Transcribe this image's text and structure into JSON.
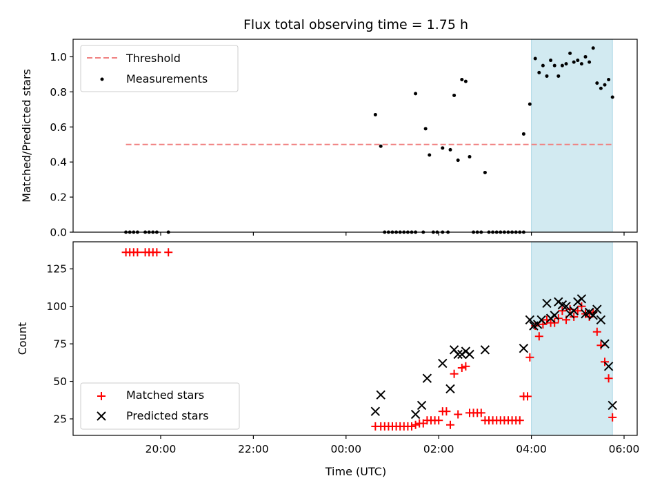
{
  "chart_data": [
    {
      "type": "scatter",
      "title": "Flux total observing time = 1.75 h",
      "ylabel": "Matched/Predicted stars",
      "ylim": [
        0,
        1.1
      ],
      "yticks": [
        "0.0",
        "0.2",
        "0.4",
        "0.6",
        "0.8",
        "1.0"
      ],
      "highlight_span": {
        "x": [
          "04:00",
          "05:45"
        ],
        "color": "#add8e6"
      },
      "legend": {
        "position": "top-left",
        "threshold_label": "Threshold",
        "measurements_label": "Measurements"
      },
      "threshold": {
        "value": 0.5,
        "x": [
          "19:15",
          "05:45"
        ],
        "color": "#f08080"
      },
      "measurements": [
        {
          "x": "19:15",
          "y": 0.0
        },
        {
          "x": "19:20",
          "y": 0.0
        },
        {
          "x": "19:25",
          "y": 0.0
        },
        {
          "x": "19:30",
          "y": 0.0
        },
        {
          "x": "19:40",
          "y": 0.0
        },
        {
          "x": "19:45",
          "y": 0.0
        },
        {
          "x": "19:50",
          "y": 0.0
        },
        {
          "x": "19:55",
          "y": 0.0
        },
        {
          "x": "20:10",
          "y": 0.0
        },
        {
          "x": "00:38",
          "y": 0.67
        },
        {
          "x": "00:45",
          "y": 0.49
        },
        {
          "x": "00:50",
          "y": 0.0
        },
        {
          "x": "00:55",
          "y": 0.0
        },
        {
          "x": "01:00",
          "y": 0.0
        },
        {
          "x": "01:05",
          "y": 0.0
        },
        {
          "x": "01:10",
          "y": 0.0
        },
        {
          "x": "01:15",
          "y": 0.0
        },
        {
          "x": "01:20",
          "y": 0.0
        },
        {
          "x": "01:25",
          "y": 0.0
        },
        {
          "x": "01:30",
          "y": 0.0
        },
        {
          "x": "01:30",
          "y": 0.79
        },
        {
          "x": "01:40",
          "y": 0.0
        },
        {
          "x": "01:43",
          "y": 0.59
        },
        {
          "x": "01:48",
          "y": 0.44
        },
        {
          "x": "01:53",
          "y": 0.0
        },
        {
          "x": "01:58",
          "y": 0.0
        },
        {
          "x": "02:05",
          "y": 0.0
        },
        {
          "x": "02:05",
          "y": 0.48
        },
        {
          "x": "02:12",
          "y": 0.0
        },
        {
          "x": "02:15",
          "y": 0.47
        },
        {
          "x": "02:20",
          "y": 0.78
        },
        {
          "x": "02:25",
          "y": 0.41
        },
        {
          "x": "02:30",
          "y": 0.87
        },
        {
          "x": "02:35",
          "y": 0.86
        },
        {
          "x": "02:40",
          "y": 0.43
        },
        {
          "x": "02:45",
          "y": 0.0
        },
        {
          "x": "02:50",
          "y": 0.0
        },
        {
          "x": "02:55",
          "y": 0.0
        },
        {
          "x": "03:00",
          "y": 0.34
        },
        {
          "x": "03:05",
          "y": 0.0
        },
        {
          "x": "03:10",
          "y": 0.0
        },
        {
          "x": "03:15",
          "y": 0.0
        },
        {
          "x": "03:20",
          "y": 0.0
        },
        {
          "x": "03:25",
          "y": 0.0
        },
        {
          "x": "03:30",
          "y": 0.0
        },
        {
          "x": "03:35",
          "y": 0.0
        },
        {
          "x": "03:40",
          "y": 0.0
        },
        {
          "x": "03:45",
          "y": 0.0
        },
        {
          "x": "03:50",
          "y": 0.0
        },
        {
          "x": "03:50",
          "y": 0.56
        },
        {
          "x": "03:58",
          "y": 0.73
        },
        {
          "x": "04:05",
          "y": 0.99
        },
        {
          "x": "04:10",
          "y": 0.91
        },
        {
          "x": "04:15",
          "y": 0.95
        },
        {
          "x": "04:20",
          "y": 0.89
        },
        {
          "x": "04:25",
          "y": 0.98
        },
        {
          "x": "04:30",
          "y": 0.95
        },
        {
          "x": "04:35",
          "y": 0.89
        },
        {
          "x": "04:40",
          "y": 0.95
        },
        {
          "x": "04:45",
          "y": 0.96
        },
        {
          "x": "04:50",
          "y": 1.02
        },
        {
          "x": "04:55",
          "y": 0.97
        },
        {
          "x": "05:00",
          "y": 0.98
        },
        {
          "x": "05:05",
          "y": 0.96
        },
        {
          "x": "05:10",
          "y": 1.0
        },
        {
          "x": "05:15",
          "y": 0.97
        },
        {
          "x": "05:20",
          "y": 1.05
        },
        {
          "x": "05:25",
          "y": 0.85
        },
        {
          "x": "05:30",
          "y": 0.82
        },
        {
          "x": "05:35",
          "y": 0.84
        },
        {
          "x": "05:40",
          "y": 0.87
        },
        {
          "x": "05:45",
          "y": 0.77
        }
      ]
    },
    {
      "type": "scatter",
      "xlabel": "Time (UTC)",
      "ylabel": "Count",
      "xticks": [
        "20:00",
        "22:00",
        "00:00",
        "02:00",
        "04:00",
        "06:00"
      ],
      "ylim": [
        14,
        143
      ],
      "yticks": [
        "25",
        "50",
        "75",
        "100",
        "125"
      ],
      "highlight_span": {
        "x": [
          "04:00",
          "05:45"
        ],
        "color": "#add8e6"
      },
      "legend": {
        "position": "bottom-left"
      },
      "series": [
        {
          "name": "Matched stars",
          "marker": "plus",
          "color": "#ff0000",
          "points": [
            {
              "x": "19:15",
              "y": 136
            },
            {
              "x": "19:20",
              "y": 136
            },
            {
              "x": "19:25",
              "y": 136
            },
            {
              "x": "19:30",
              "y": 136
            },
            {
              "x": "19:40",
              "y": 136
            },
            {
              "x": "19:45",
              "y": 136
            },
            {
              "x": "19:50",
              "y": 136
            },
            {
              "x": "19:55",
              "y": 136
            },
            {
              "x": "20:10",
              "y": 136
            },
            {
              "x": "00:38",
              "y": 20
            },
            {
              "x": "00:45",
              "y": 20
            },
            {
              "x": "00:50",
              "y": 20
            },
            {
              "x": "00:55",
              "y": 20
            },
            {
              "x": "01:00",
              "y": 20
            },
            {
              "x": "01:05",
              "y": 20
            },
            {
              "x": "01:10",
              "y": 20
            },
            {
              "x": "01:15",
              "y": 20
            },
            {
              "x": "01:20",
              "y": 20
            },
            {
              "x": "01:25",
              "y": 20
            },
            {
              "x": "01:30",
              "y": 21
            },
            {
              "x": "01:35",
              "y": 22
            },
            {
              "x": "01:40",
              "y": 22
            },
            {
              "x": "01:45",
              "y": 24
            },
            {
              "x": "01:50",
              "y": 24
            },
            {
              "x": "01:55",
              "y": 24
            },
            {
              "x": "02:00",
              "y": 24
            },
            {
              "x": "02:05",
              "y": 30
            },
            {
              "x": "02:10",
              "y": 30
            },
            {
              "x": "02:15",
              "y": 21
            },
            {
              "x": "02:20",
              "y": 55
            },
            {
              "x": "02:25",
              "y": 28
            },
            {
              "x": "02:30",
              "y": 59
            },
            {
              "x": "02:35",
              "y": 60
            },
            {
              "x": "02:40",
              "y": 29
            },
            {
              "x": "02:45",
              "y": 29
            },
            {
              "x": "02:50",
              "y": 29
            },
            {
              "x": "02:55",
              "y": 29
            },
            {
              "x": "03:00",
              "y": 24
            },
            {
              "x": "03:05",
              "y": 24
            },
            {
              "x": "03:10",
              "y": 24
            },
            {
              "x": "03:15",
              "y": 24
            },
            {
              "x": "03:20",
              "y": 24
            },
            {
              "x": "03:25",
              "y": 24
            },
            {
              "x": "03:30",
              "y": 24
            },
            {
              "x": "03:35",
              "y": 24
            },
            {
              "x": "03:40",
              "y": 24
            },
            {
              "x": "03:45",
              "y": 24
            },
            {
              "x": "03:50",
              "y": 40
            },
            {
              "x": "03:55",
              "y": 40
            },
            {
              "x": "03:58",
              "y": 66
            },
            {
              "x": "04:05",
              "y": 87
            },
            {
              "x": "04:10",
              "y": 80
            },
            {
              "x": "04:15",
              "y": 88
            },
            {
              "x": "04:20",
              "y": 91
            },
            {
              "x": "04:25",
              "y": 89
            },
            {
              "x": "04:30",
              "y": 89
            },
            {
              "x": "04:35",
              "y": 92
            },
            {
              "x": "04:40",
              "y": 97
            },
            {
              "x": "04:45",
              "y": 91
            },
            {
              "x": "04:50",
              "y": 98
            },
            {
              "x": "04:55",
              "y": 93
            },
            {
              "x": "05:00",
              "y": 97
            },
            {
              "x": "05:05",
              "y": 100
            },
            {
              "x": "05:10",
              "y": 95
            },
            {
              "x": "05:15",
              "y": 93
            },
            {
              "x": "05:20",
              "y": 96
            },
            {
              "x": "05:25",
              "y": 83
            },
            {
              "x": "05:30",
              "y": 74
            },
            {
              "x": "05:35",
              "y": 63
            },
            {
              "x": "05:40",
              "y": 52
            },
            {
              "x": "05:45",
              "y": 26
            }
          ]
        },
        {
          "name": "Predicted stars",
          "marker": "x",
          "color": "#000000",
          "points": [
            {
              "x": "00:38",
              "y": 30
            },
            {
              "x": "00:45",
              "y": 41
            },
            {
              "x": "01:30",
              "y": 28
            },
            {
              "x": "01:38",
              "y": 34
            },
            {
              "x": "01:45",
              "y": 52
            },
            {
              "x": "02:05",
              "y": 62
            },
            {
              "x": "02:15",
              "y": 45
            },
            {
              "x": "02:20",
              "y": 71
            },
            {
              "x": "02:25",
              "y": 68
            },
            {
              "x": "02:30",
              "y": 68
            },
            {
              "x": "02:35",
              "y": 70
            },
            {
              "x": "02:40",
              "y": 68
            },
            {
              "x": "03:00",
              "y": 71
            },
            {
              "x": "03:50",
              "y": 72
            },
            {
              "x": "03:58",
              "y": 91
            },
            {
              "x": "04:03",
              "y": 87
            },
            {
              "x": "04:08",
              "y": 88
            },
            {
              "x": "04:13",
              "y": 91
            },
            {
              "x": "04:20",
              "y": 102
            },
            {
              "x": "04:25",
              "y": 92
            },
            {
              "x": "04:30",
              "y": 94
            },
            {
              "x": "04:35",
              "y": 103
            },
            {
              "x": "04:40",
              "y": 101
            },
            {
              "x": "04:45",
              "y": 100
            },
            {
              "x": "04:50",
              "y": 95
            },
            {
              "x": "04:55",
              "y": 97
            },
            {
              "x": "05:00",
              "y": 103
            },
            {
              "x": "05:05",
              "y": 105
            },
            {
              "x": "05:10",
              "y": 95
            },
            {
              "x": "05:15",
              "y": 96
            },
            {
              "x": "05:20",
              "y": 94
            },
            {
              "x": "05:25",
              "y": 98
            },
            {
              "x": "05:30",
              "y": 91
            },
            {
              "x": "05:35",
              "y": 75
            },
            {
              "x": "05:40",
              "y": 60
            },
            {
              "x": "05:45",
              "y": 34
            }
          ]
        }
      ]
    }
  ]
}
